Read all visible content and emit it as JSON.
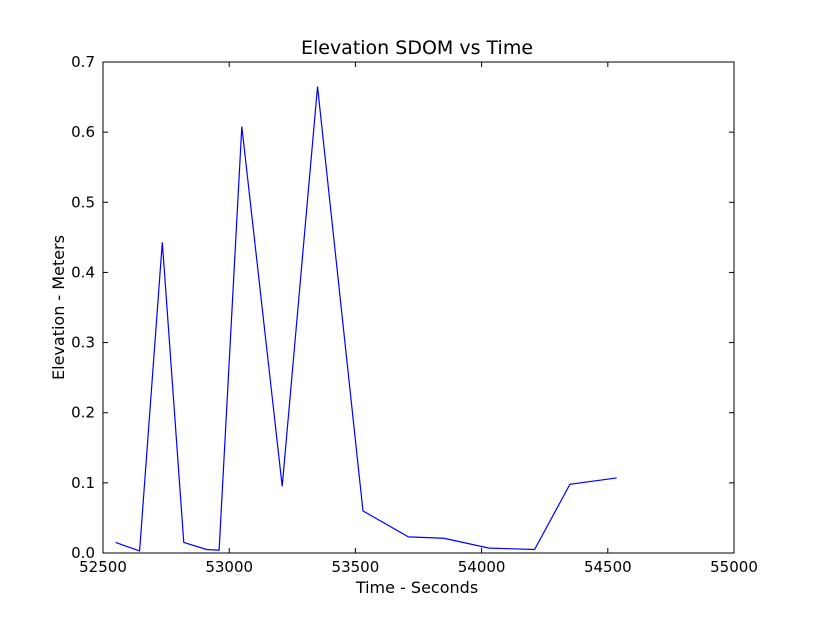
{
  "chart_data": {
    "type": "line",
    "title": "Elevation SDOM vs Time",
    "xlabel": "Time - Seconds",
    "ylabel": "Elevation - Meters",
    "xlim": [
      52500,
      55000
    ],
    "ylim": [
      0,
      0.7
    ],
    "xticks": [
      "52500",
      "53000",
      "53500",
      "54000",
      "54500",
      "55000"
    ],
    "yticks": [
      "0.0",
      "0.1",
      "0.2",
      "0.3",
      "0.4",
      "0.5",
      "0.6",
      "0.7"
    ],
    "grid": false,
    "series": [
      {
        "color": "#0000ff",
        "x": [
          52550,
          52645,
          52735,
          52820,
          52910,
          52960,
          53050,
          53210,
          53350,
          53530,
          53710,
          53850,
          54030,
          54210,
          54350,
          54535
        ],
        "y": [
          0.015,
          0.003,
          0.443,
          0.015,
          0.005,
          0.004,
          0.608,
          0.095,
          0.665,
          0.06,
          0.023,
          0.021,
          0.007,
          0.005,
          0.098,
          0.107
        ]
      }
    ]
  }
}
